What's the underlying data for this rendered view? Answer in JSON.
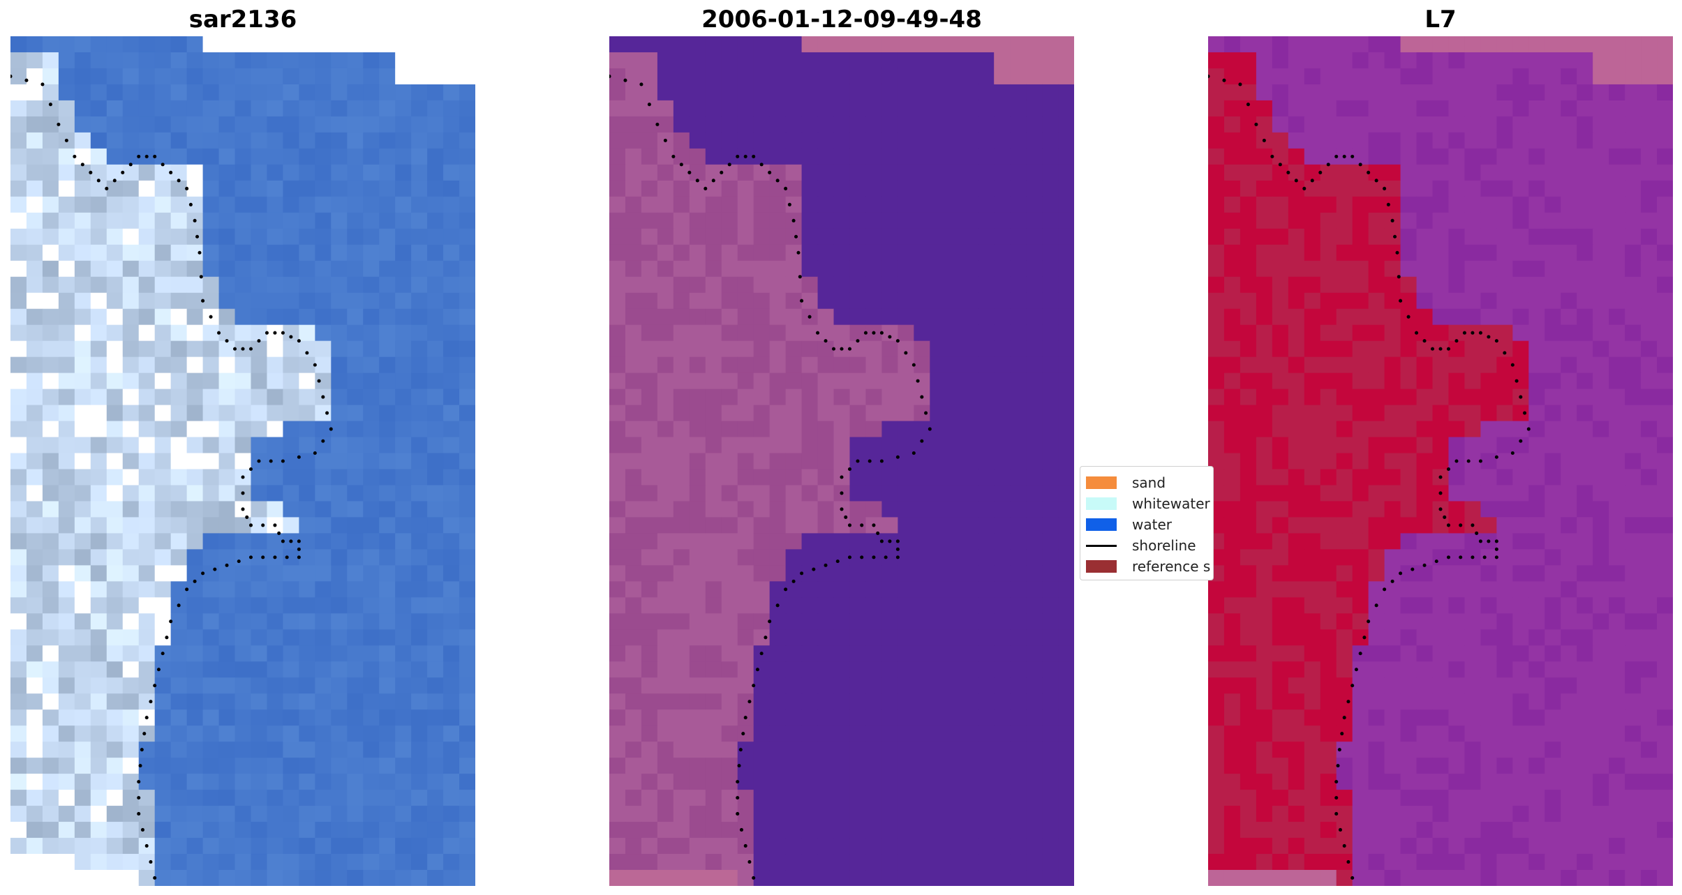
{
  "panels": [
    {
      "title": "sar2136",
      "style": "rgb"
    },
    {
      "title": "2006-01-12-09-49-48",
      "style": "classified"
    },
    {
      "title": "L7",
      "style": "index"
    }
  ],
  "legend": {
    "items": [
      {
        "label": "sand",
        "kind": "patch",
        "color": "#f58c3c"
      },
      {
        "label": "whitewater",
        "kind": "patch",
        "color": "#c8faf8"
      },
      {
        "label": "water",
        "kind": "patch",
        "color": "#1060e8"
      },
      {
        "label": "shoreline",
        "kind": "line",
        "color": "#000000"
      },
      {
        "label": "reference s",
        "kind": "patch",
        "color": "#9a2f33"
      }
    ]
  },
  "colors": {
    "rgb_water": "#4478d0",
    "rgb_land": "#c9dcef",
    "rgb_bright": "#ffffff",
    "class_water": "#562699",
    "class_land": "#9b4b8f",
    "class_nodata": "#bb6896",
    "index_water": "#9434a4",
    "index_land": "#c4063c",
    "index_nodata": "#bd6597",
    "shoreline": "#000000"
  }
}
